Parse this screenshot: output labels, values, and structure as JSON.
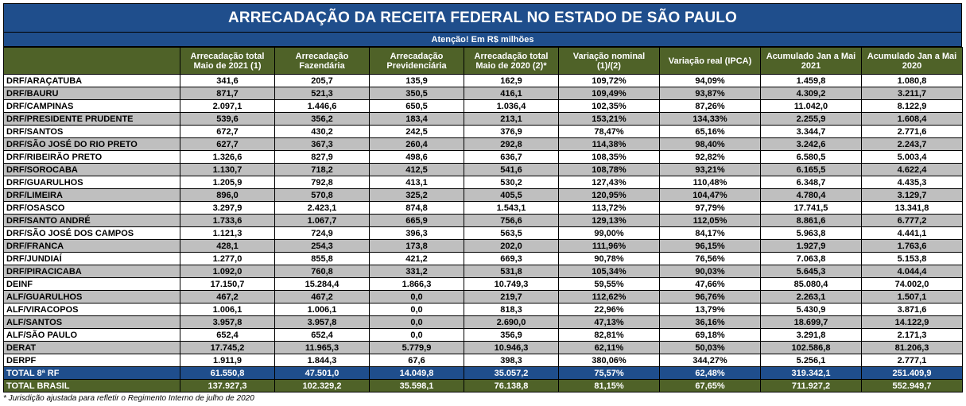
{
  "title": "ARRECADAÇÃO DA RECEITA FEDERAL NO ESTADO DE SÃO PAULO",
  "subtitle": "Atenção! Em R$ milhões",
  "headers": [
    "",
    "Arrecadação total Maio de 2021 (1)",
    "Arrecadação Fazendária",
    "Arrecadação Previdenciária",
    "Arrecadação total Maio de 2020 (2)*",
    "Variação nominal (1)/(2)",
    "Variação real (IPCA)",
    "Acumulado Jan a Mai 2021",
    "Acumulado Jan a Mai 2020"
  ],
  "rows": [
    [
      "DRF/ARAÇATUBA",
      "341,6",
      "205,7",
      "135,9",
      "162,9",
      "109,72%",
      "94,09%",
      "1.459,8",
      "1.080,8"
    ],
    [
      "DRF/BAURU",
      "871,7",
      "521,3",
      "350,5",
      "416,1",
      "109,49%",
      "93,87%",
      "4.309,2",
      "3.211,7"
    ],
    [
      "DRF/CAMPINAS",
      "2.097,1",
      "1.446,6",
      "650,5",
      "1.036,4",
      "102,35%",
      "87,26%",
      "11.042,0",
      "8.122,9"
    ],
    [
      "DRF/PRESIDENTE PRUDENTE",
      "539,6",
      "356,2",
      "183,4",
      "213,1",
      "153,21%",
      "134,33%",
      "2.255,9",
      "1.608,4"
    ],
    [
      "DRF/SANTOS",
      "672,7",
      "430,2",
      "242,5",
      "376,9",
      "78,47%",
      "65,16%",
      "3.344,7",
      "2.771,6"
    ],
    [
      "DRF/SÃO JOSÉ DO RIO PRETO",
      "627,7",
      "367,3",
      "260,4",
      "292,8",
      "114,38%",
      "98,40%",
      "3.242,6",
      "2.243,7"
    ],
    [
      "DRF/RIBEIRÃO PRETO",
      "1.326,6",
      "827,9",
      "498,6",
      "636,7",
      "108,35%",
      "92,82%",
      "6.580,5",
      "5.003,4"
    ],
    [
      "DRF/SOROCABA",
      "1.130,7",
      "718,2",
      "412,5",
      "541,6",
      "108,78%",
      "93,21%",
      "6.165,5",
      "4.622,4"
    ],
    [
      "DRF/GUARULHOS",
      "1.205,9",
      "792,8",
      "413,1",
      "530,2",
      "127,43%",
      "110,48%",
      "6.348,7",
      "4.435,3"
    ],
    [
      "DRF/LIMEIRA",
      "896,0",
      "570,8",
      "325,2",
      "405,5",
      "120,95%",
      "104,47%",
      "4.780,4",
      "3.129,7"
    ],
    [
      "DRF/OSASCO",
      "3.297,9",
      "2.423,1",
      "874,8",
      "1.543,1",
      "113,72%",
      "97,79%",
      "17.741,5",
      "13.341,8"
    ],
    [
      "DRF/SANTO ANDRÉ",
      "1.733,6",
      "1.067,7",
      "665,9",
      "756,6",
      "129,13%",
      "112,05%",
      "8.861,6",
      "6.777,2"
    ],
    [
      "DRF/SÃO JOSÉ DOS CAMPOS",
      "1.121,3",
      "724,9",
      "396,3",
      "563,5",
      "99,00%",
      "84,17%",
      "5.963,8",
      "4.441,1"
    ],
    [
      "DRF/FRANCA",
      "428,1",
      "254,3",
      "173,8",
      "202,0",
      "111,96%",
      "96,15%",
      "1.927,9",
      "1.763,6"
    ],
    [
      "DRF/JUNDIAÍ",
      "1.277,0",
      "855,8",
      "421,2",
      "669,3",
      "90,78%",
      "76,56%",
      "7.063,8",
      "5.153,8"
    ],
    [
      "DRF/PIRACICABA",
      "1.092,0",
      "760,8",
      "331,2",
      "531,8",
      "105,34%",
      "90,03%",
      "5.645,3",
      "4.044,4"
    ],
    [
      "DEINF",
      "17.150,7",
      "15.284,4",
      "1.866,3",
      "10.749,3",
      "59,55%",
      "47,66%",
      "85.080,4",
      "74.002,0"
    ],
    [
      "ALF/GUARULHOS",
      "467,2",
      "467,2",
      "0,0",
      "219,7",
      "112,62%",
      "96,76%",
      "2.263,1",
      "1.507,1"
    ],
    [
      "ALF/VIRACOPOS",
      "1.006,1",
      "1.006,1",
      "0,0",
      "818,3",
      "22,96%",
      "13,79%",
      "5.430,9",
      "3.871,6"
    ],
    [
      "ALF/SANTOS",
      "3.957,8",
      "3.957,8",
      "0,0",
      "2.690,0",
      "47,13%",
      "36,16%",
      "18.699,7",
      "14.122,9"
    ],
    [
      "ALF/SÃO PAULO",
      "652,4",
      "652,4",
      "0,0",
      "356,9",
      "82,81%",
      "69,18%",
      "3.291,8",
      "2.171,3"
    ],
    [
      "DERAT",
      "17.745,2",
      "11.965,3",
      "5.779,9",
      "10.946,3",
      "62,11%",
      "50,03%",
      "102.586,8",
      "81.206,3"
    ],
    [
      "DERPF",
      "1.911,9",
      "1.844,3",
      "67,6",
      "398,3",
      "380,06%",
      "344,27%",
      "5.256,1",
      "2.777,1"
    ]
  ],
  "total_8rf": [
    "TOTAL 8ª RF",
    "61.550,8",
    "47.501,0",
    "14.049,8",
    "35.057,2",
    "75,57%",
    "62,48%",
    "319.342,1",
    "251.409,9"
  ],
  "total_brasil": [
    "TOTAL BRASIL",
    "137.927,3",
    "102.329,2",
    "35.598,1",
    "76.138,8",
    "81,15%",
    "67,65%",
    "711.927,2",
    "552.949,7"
  ],
  "footnote": "* Jurisdição ajustada para refletir o Regimento Interno de julho de 2020",
  "colors": {
    "header_blue": "#1f4e8c",
    "header_green": "#4f6228",
    "row_gray": "#bfbfbf"
  }
}
